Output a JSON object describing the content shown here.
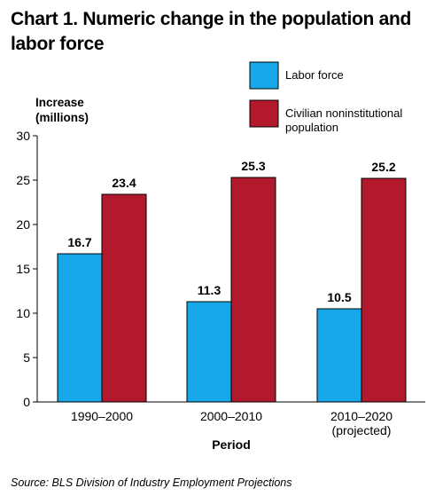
{
  "title": "Chart 1. Numeric change in the population and labor force",
  "source": "Source: BLS Division of Industry Employment Projections",
  "colors": {
    "labor_force": "#16a8e8",
    "population": "#b3192c"
  },
  "chart_data": {
    "type": "bar",
    "categories": [
      "1990–2000",
      "2000–2010",
      "2010–2020\n(projected)"
    ],
    "series": [
      {
        "name": "Labor force",
        "values": [
          16.7,
          11.3,
          10.5
        ]
      },
      {
        "name": "Civilian noninstitutional\npopulation",
        "values": [
          23.4,
          25.3,
          25.2
        ]
      }
    ],
    "ylabel": "Increase\n(millions)",
    "xlabel": "Period",
    "ylim": [
      0,
      30
    ],
    "yticks": [
      0,
      5,
      10,
      15,
      20,
      25,
      30
    ],
    "data_labels": true,
    "legend_position": "top-right",
    "grid": false
  }
}
